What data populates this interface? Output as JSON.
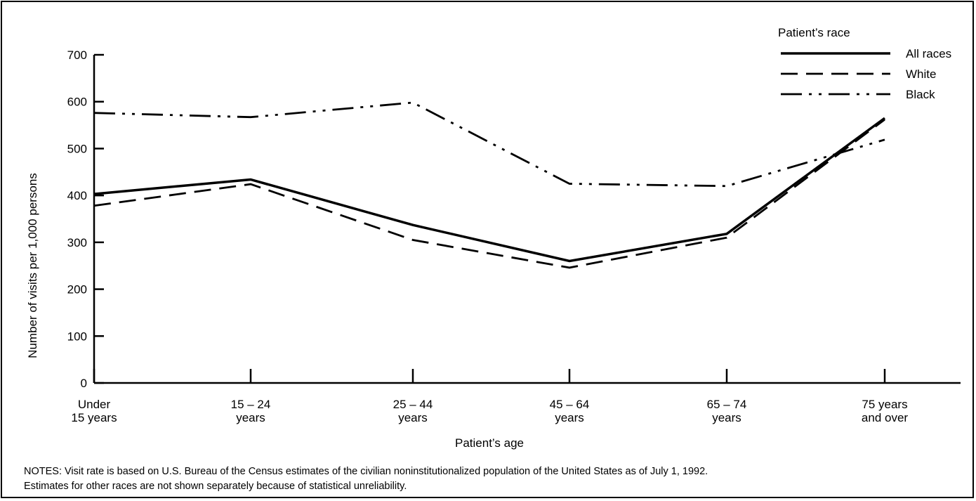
{
  "chart_data": {
    "type": "line",
    "title": "",
    "xlabel": "Patient’s age",
    "ylabel": "Number of visits per 1,000 persons",
    "ylim": [
      0,
      700
    ],
    "yticks": [
      0,
      100,
      200,
      300,
      400,
      500,
      600,
      700
    ],
    "grid": false,
    "categories": [
      {
        "line1": "Under",
        "line2": "15 years"
      },
      {
        "line1": "15 – 24",
        "line2": "years"
      },
      {
        "line1": "25 – 44",
        "line2": "years"
      },
      {
        "line1": "45 – 64",
        "line2": "years"
      },
      {
        "line1": "65 – 74",
        "line2": "years"
      },
      {
        "line1": "75 years",
        "line2": "and over"
      }
    ],
    "legend": {
      "title": "Patient’s race",
      "placement": "top-right"
    },
    "series": [
      {
        "name": "All races",
        "style": "solid",
        "values": [
          403,
          434,
          337,
          260,
          318,
          565
        ]
      },
      {
        "name": "White",
        "style": "dashed",
        "values": [
          378,
          424,
          305,
          246,
          310,
          562
        ]
      },
      {
        "name": "Black",
        "style": "dash-dot-dot",
        "values": [
          576,
          567,
          598,
          425,
          420,
          519
        ]
      }
    ]
  },
  "notes": {
    "line1": "NOTES: Visit rate is based on U.S. Bureau of the Census estimates of the civilian noninstitutionalized population of the United States as of July 1, 1992.",
    "line2": "Estimates for other races are not shown separately because of statistical unreliability."
  }
}
